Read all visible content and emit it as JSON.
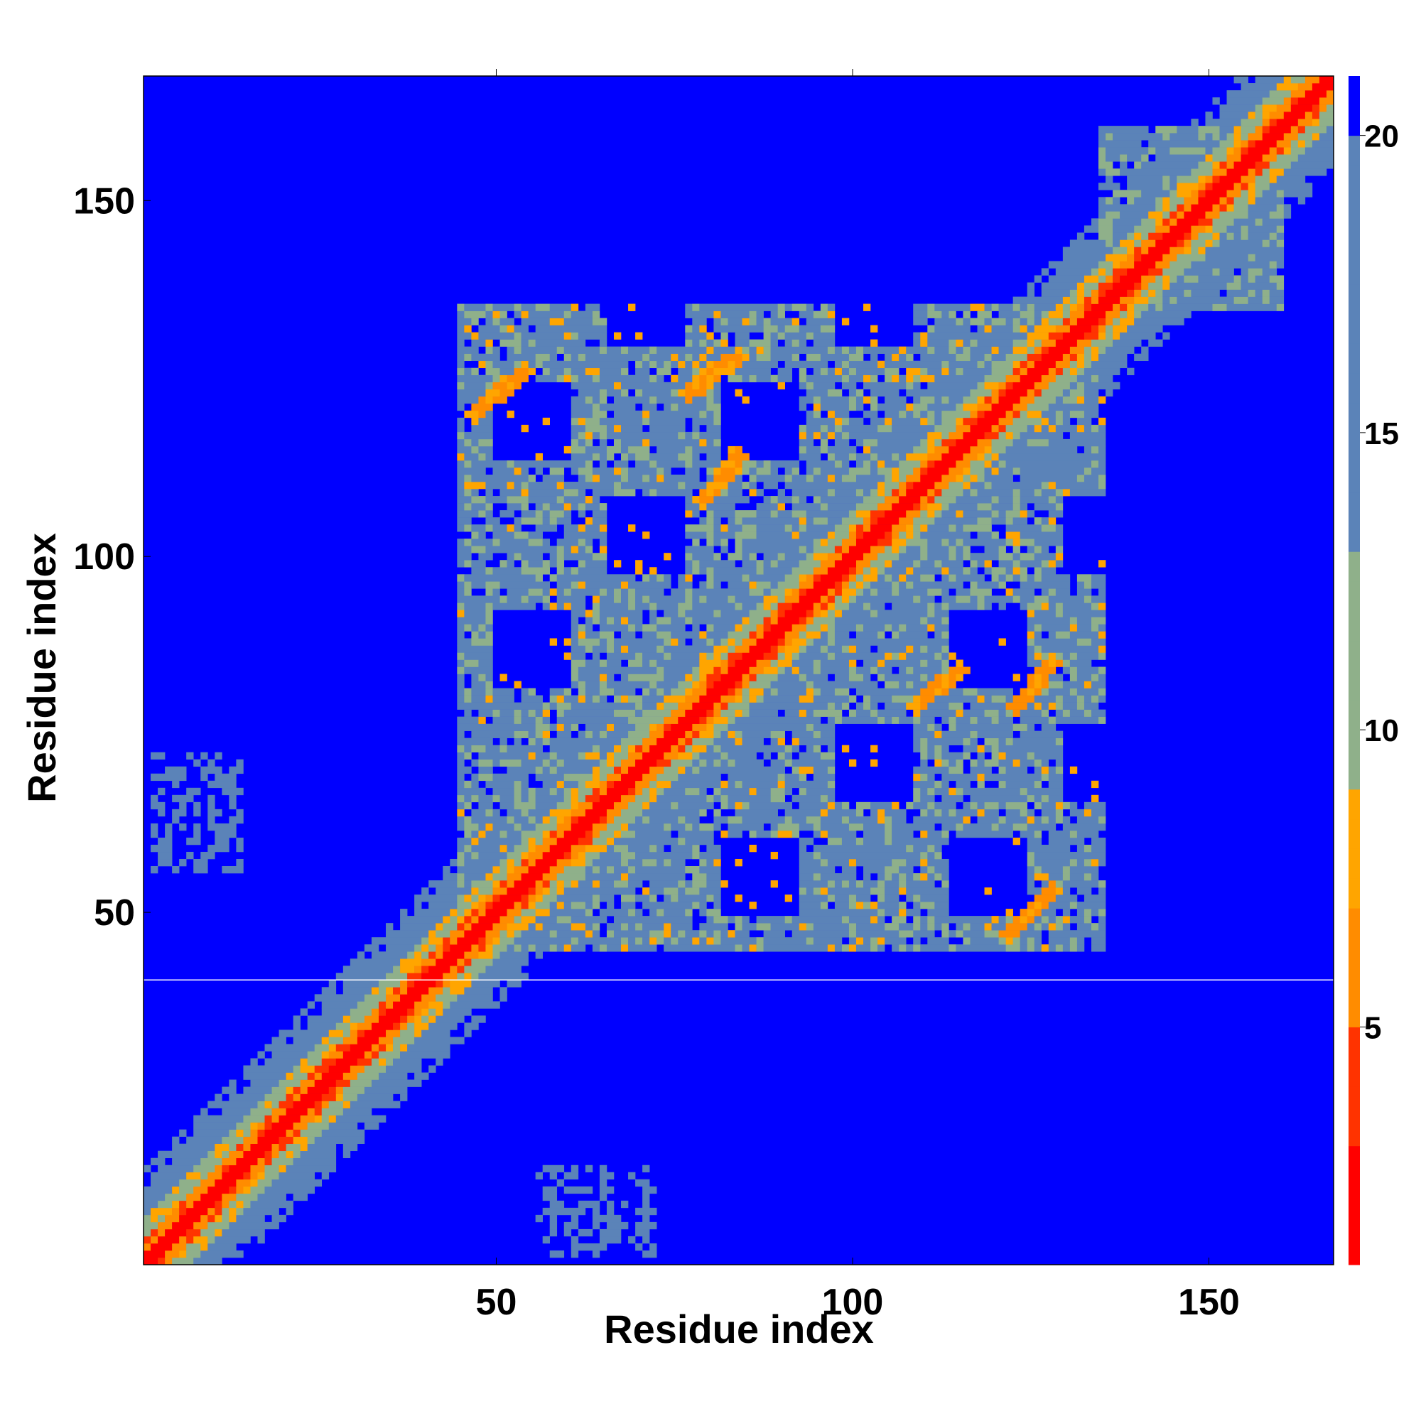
{
  "chart_data": {
    "type": "heatmap",
    "title": "",
    "xlabel": "Residue index",
    "ylabel": "Residue index",
    "n_residues": 167,
    "xlim": [
      1,
      167
    ],
    "ylim": [
      1,
      167
    ],
    "xticks": [
      50,
      100,
      150
    ],
    "yticks": [
      50,
      100,
      150
    ],
    "colorbar": {
      "ticks": [
        5,
        10,
        15,
        20
      ],
      "range": [
        1,
        21
      ],
      "saturate_above": 20,
      "colors": {
        "low": "#ff0000",
        "mid_low": "#ff8c00",
        "mid": "#ffa500",
        "mid_high": "#8fb08a",
        "high": "#5b83b8",
        "background": "#0000ff"
      }
    },
    "description_values": {
      "diagonal_band_width": 5,
      "separator_row": 41
    },
    "features": [
      {
        "kind": "helix_diag",
        "from": [
          47,
          120
        ],
        "to": [
          54,
          126
        ]
      },
      {
        "kind": "helix_diag",
        "from": [
          77,
          123
        ],
        "to": [
          84,
          128
        ]
      },
      {
        "kind": "helix_diag",
        "from": [
          79,
          108
        ],
        "to": [
          84,
          114
        ]
      },
      {
        "kind": "helix_diag",
        "from": [
          109,
          79
        ],
        "to": [
          115,
          84
        ]
      },
      {
        "kind": "helix_diag",
        "from": [
          123,
          79
        ],
        "to": [
          128,
          85
        ]
      },
      {
        "kind": "helix_diag",
        "from": [
          122,
          47
        ],
        "to": [
          128,
          53
        ]
      },
      {
        "kind": "block",
        "center": [
          10,
          65
        ],
        "size": 10
      },
      {
        "kind": "block",
        "center": [
          63,
          10
        ],
        "size": 10
      },
      {
        "kind": "block",
        "center": [
          150,
          148
        ],
        "size": 18
      },
      {
        "kind": "region",
        "x": [
          45,
          135
        ],
        "y": [
          45,
          135
        ]
      }
    ]
  }
}
